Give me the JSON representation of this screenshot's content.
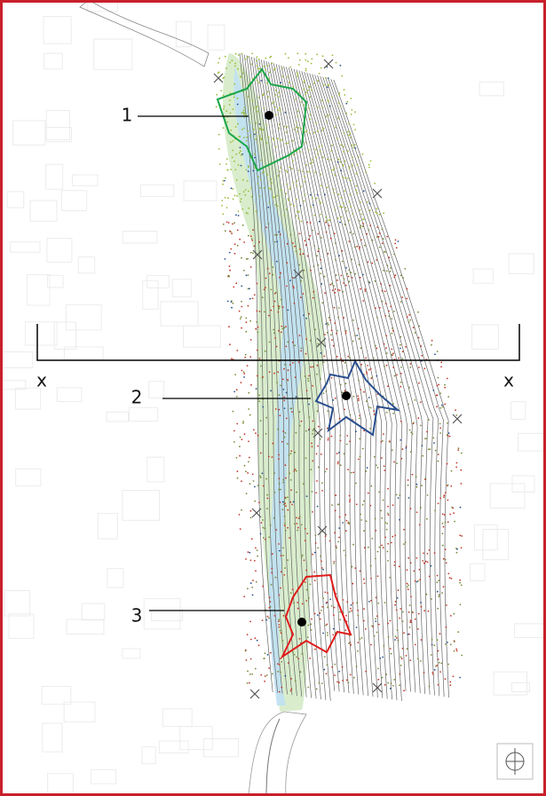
{
  "markers": [
    {
      "label": "1"
    },
    {
      "label": "2"
    },
    {
      "label": "3"
    }
  ],
  "section": {
    "start_label": "x",
    "end_label": "x"
  }
}
